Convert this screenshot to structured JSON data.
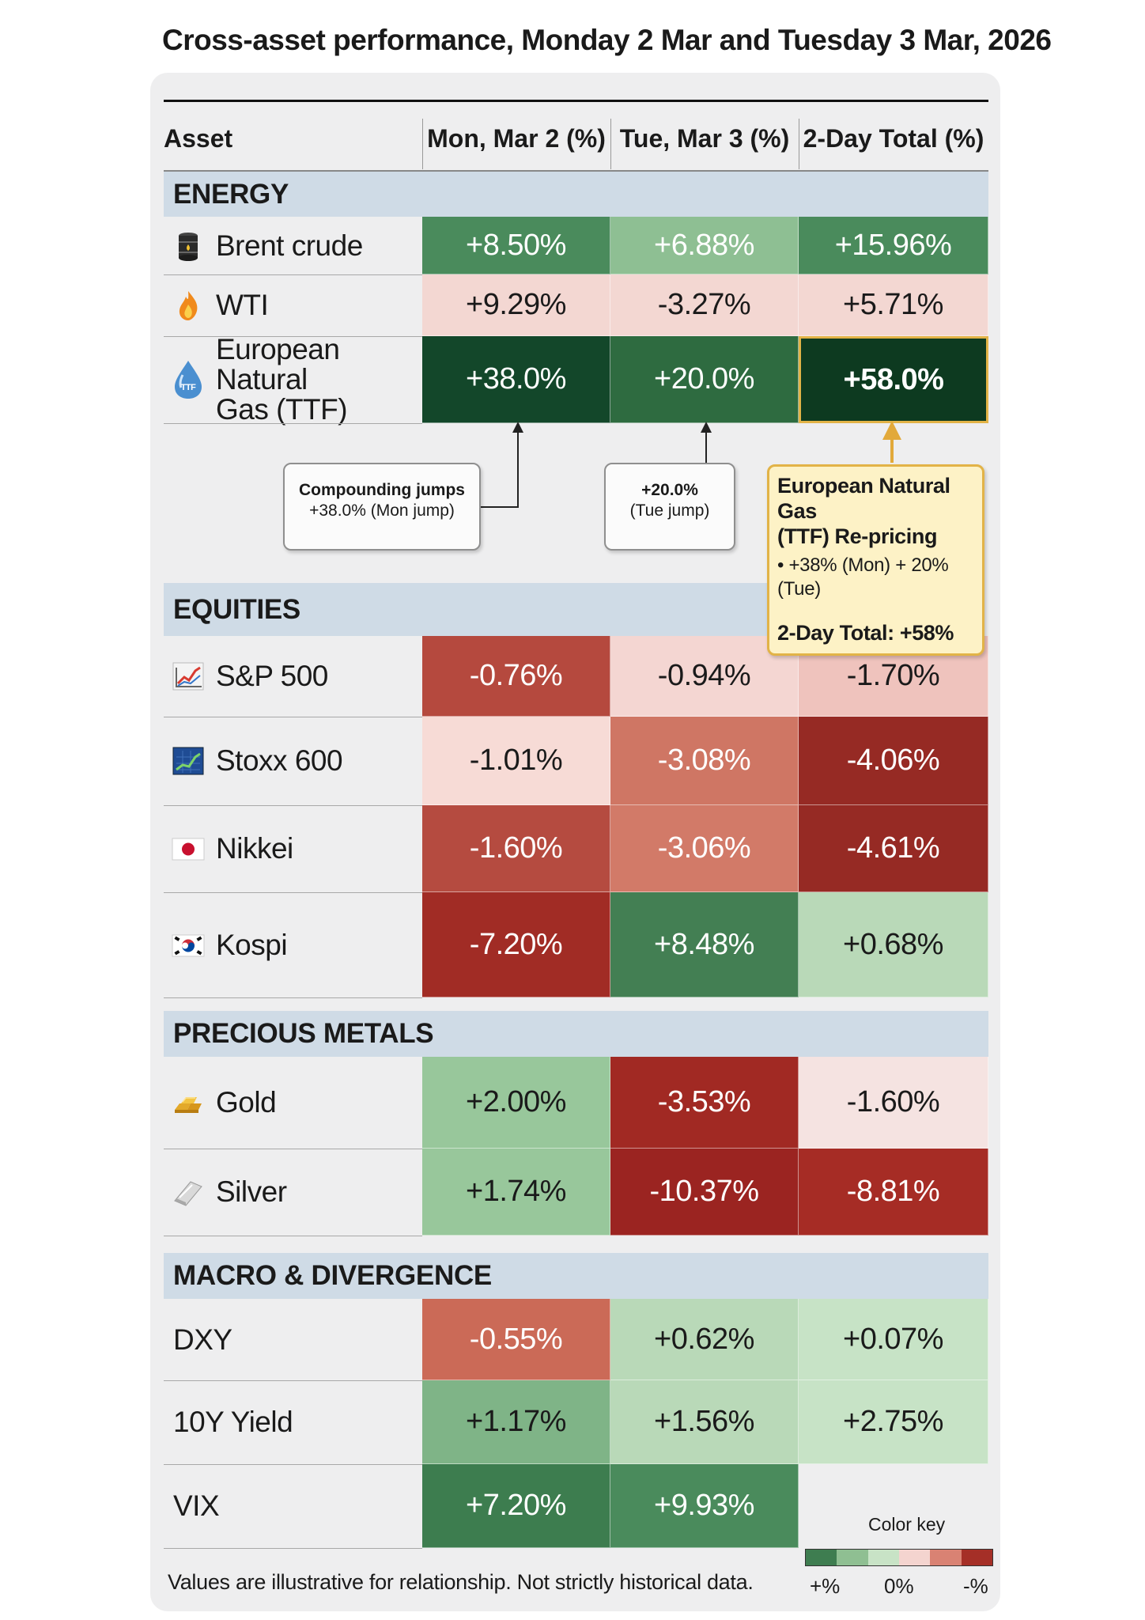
{
  "chart_data": {
    "type": "table",
    "title": "Cross-asset performance, Monday 2 Mar and Tuesday 3 Mar, 2026",
    "columns": [
      "Asset",
      "Mon, Mar 2 (%)",
      "Tue, Mar 3 (%)",
      "2-Day Total (%)"
    ],
    "sections": [
      {
        "name": "ENERGY",
        "rows": [
          {
            "asset": "Brent crude",
            "icon": "oil-barrel-icon",
            "values": [
              "+8.50%",
              "+6.88%",
              "+15.96%"
            ],
            "colors": [
              "#4a8b5c",
              "#8ebf93",
              "#4a8b5c"
            ]
          },
          {
            "asset": "WTI",
            "icon": "flame-icon",
            "values": [
              "+9.29%",
              "-3.27%",
              "+5.71%"
            ],
            "colors": [
              "#f3d7d2",
              "#f3d7d2",
              "#f3d7d2"
            ]
          },
          {
            "asset": "European Natural Gas (TTF)",
            "asset_lines": [
              "European Natural",
              "Gas (TTF)"
            ],
            "icon": "gas-drop-icon",
            "icon_text": "TTF",
            "values": [
              "+38.0%",
              "+20.0%",
              "+58.0%"
            ],
            "colors": [
              "#13472a",
              "#2e6b40",
              "#0d3a20"
            ]
          }
        ]
      },
      {
        "name": "EQUITIES",
        "rows": [
          {
            "asset": "S&P 500",
            "icon": "line-chart-icon",
            "values": [
              "-0.76%",
              "-0.94%",
              "-1.70%"
            ],
            "colors": [
              "#b5493e",
              "#f4d6d2",
              "#efc3bd"
            ]
          },
          {
            "asset": "Stoxx 600",
            "icon": "stock-screen-icon",
            "values": [
              "-1.01%",
              "-3.08%",
              "-4.06%"
            ],
            "colors": [
              "#f7dbd6",
              "#cf7664",
              "#962a24"
            ]
          },
          {
            "asset": "Nikkei",
            "icon": "japan-flag-icon",
            "values": [
              "-1.60%",
              "-3.06%",
              "-4.61%"
            ],
            "colors": [
              "#b54b40",
              "#d27a68",
              "#962a24"
            ]
          },
          {
            "asset": "Kospi",
            "icon": "korea-flag-icon",
            "values": [
              "-7.20%",
              "+8.48%",
              "+0.68%"
            ],
            "colors": [
              "#a12c25",
              "#437f53",
              "#b9d9b8"
            ]
          }
        ]
      },
      {
        "name": "PRECIOUS METALS",
        "rows": [
          {
            "asset": "Gold",
            "icon": "gold-bars-icon",
            "values": [
              "+2.00%",
              "-3.53%",
              "-1.60%"
            ],
            "colors": [
              "#98c79b",
              "#a12923",
              "#f5e3e1"
            ]
          },
          {
            "asset": "Silver",
            "icon": "silver-bar-icon",
            "values": [
              "+1.74%",
              "-10.37%",
              "-8.81%"
            ],
            "colors": [
              "#98c79b",
              "#9b2421",
              "#a62c25"
            ]
          }
        ]
      },
      {
        "name": "MACRO & DIVERGENCE",
        "rows": [
          {
            "asset": "DXY",
            "icon": "",
            "values": [
              "-0.55%",
              "+0.62%",
              "+0.07%"
            ],
            "colors": [
              "#cb6a57",
              "#b9d9b8",
              "#c7e3c6"
            ]
          },
          {
            "asset": "10Y Yield",
            "icon": "",
            "values": [
              "+1.17%",
              "+1.56%",
              "+2.75%"
            ],
            "colors": [
              "#7fb487",
              "#b9d9b8",
              "#c7e3c6"
            ]
          },
          {
            "asset": "VIX",
            "icon": "",
            "values": [
              "+7.20%",
              "+9.93%",
              ""
            ],
            "colors": [
              "#3d7d4f",
              "#4a8b5c",
              "none"
            ]
          }
        ]
      }
    ],
    "annotations": [
      {
        "title": "Compounding jumps",
        "body": "+38.0% (Mon jump)"
      },
      {
        "title": "+20.0%",
        "body": "(Tue jump)"
      },
      {
        "title": "European Natural Gas (TTF) Re-pricing",
        "title_lines": [
          "European Natural Gas",
          "(TTF) Re-pricing"
        ],
        "bullet": "• +38% (Mon) + 20% (Tue)",
        "total": "2-Day Total: +58%"
      }
    ],
    "color_key": {
      "title": "Color key",
      "colors": [
        "#3e7d50",
        "#8fbf92",
        "#c8e3c6",
        "#f4d4cf",
        "#d98273",
        "#a52f27"
      ],
      "labels": [
        "+%",
        "0%",
        "-%"
      ]
    },
    "footnote": "Values are illustrative for relationship. Not strictly historical data."
  }
}
